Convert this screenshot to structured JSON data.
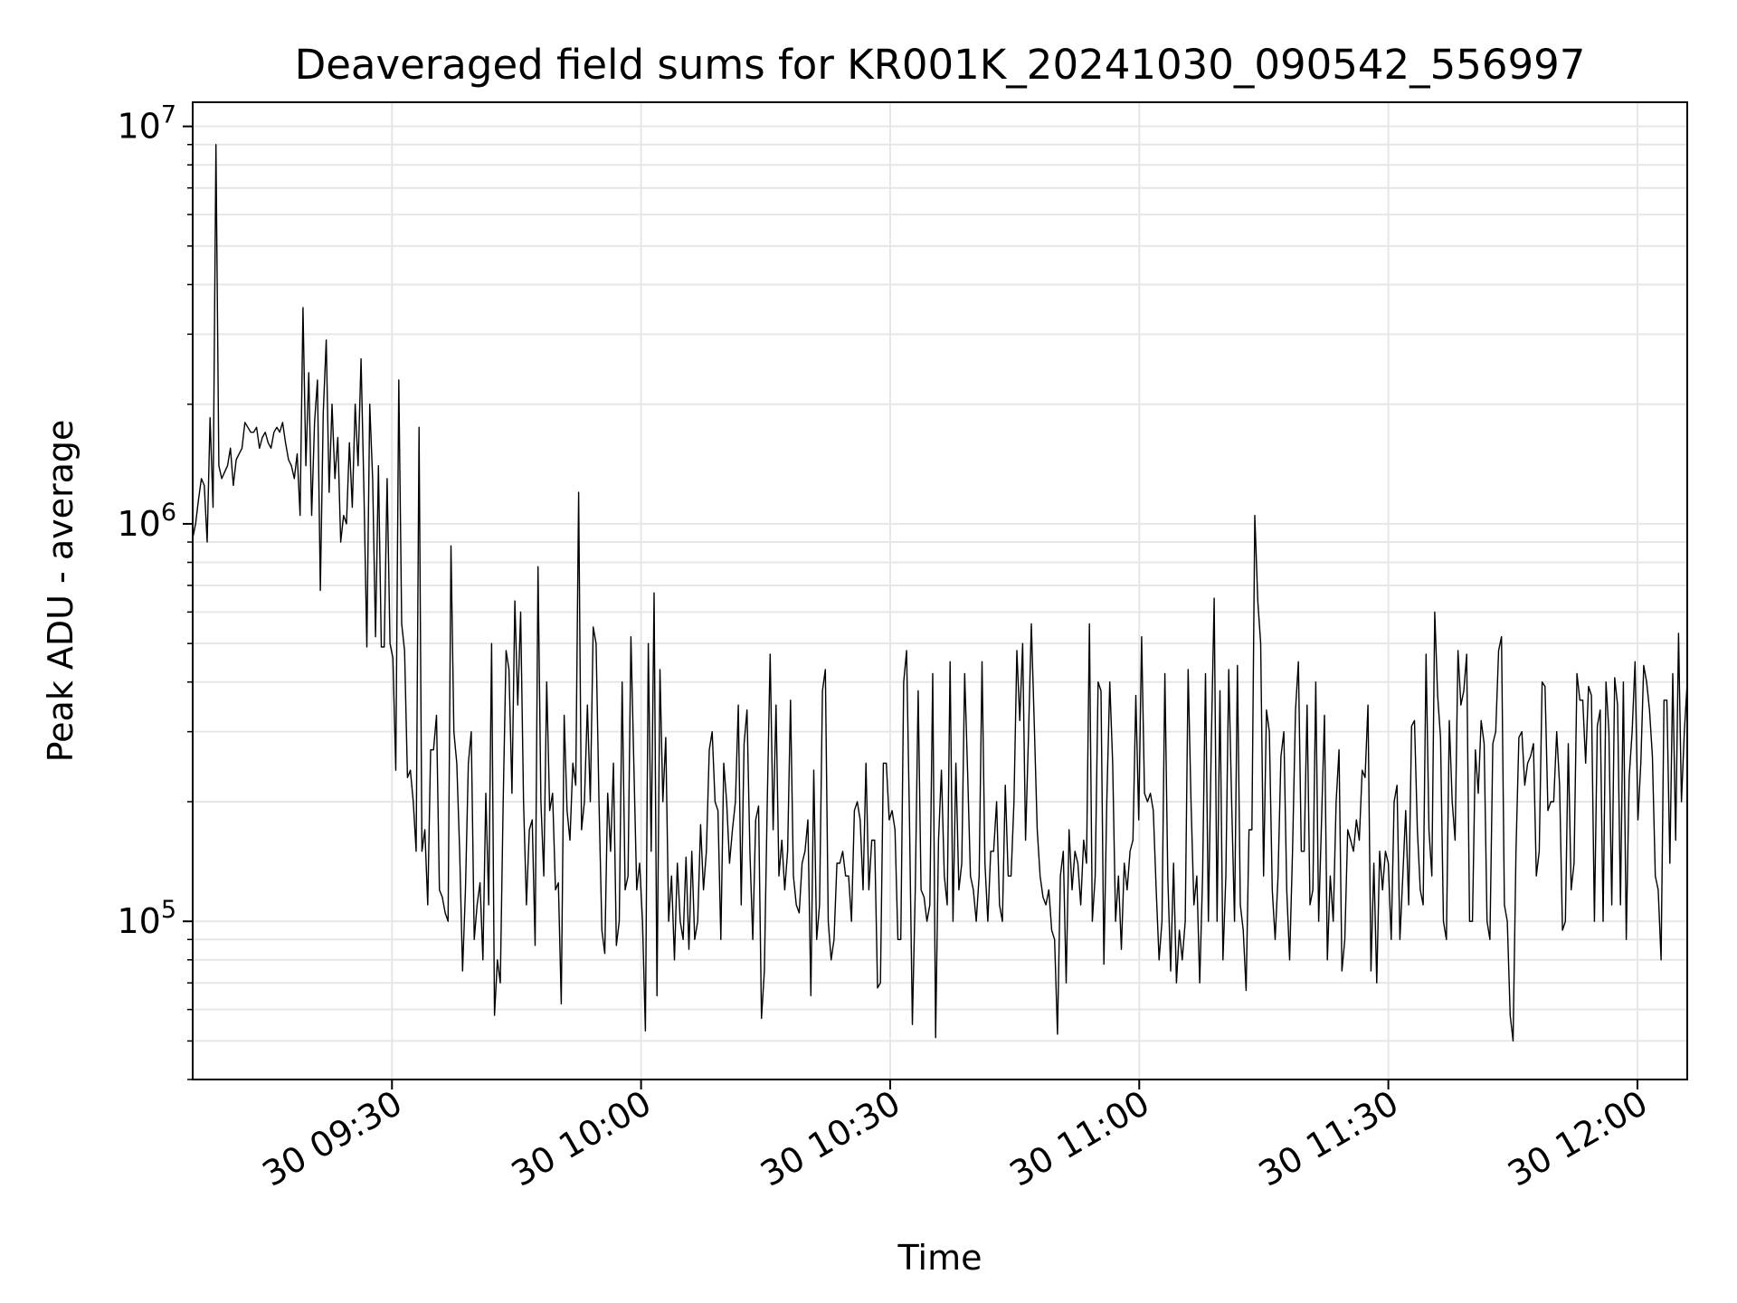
{
  "chart_data": {
    "type": "line",
    "title": "Deaveraged field sums for KR001K_20241030_090542_556997",
    "xlabel": "Time",
    "ylabel": "Peak ADU - average",
    "yscale": "log",
    "ylim": [
      40000,
      11500000
    ],
    "xlim": [
      "2024-10-30 09:06",
      "2024-10-30 12:06"
    ],
    "x_ticks": [
      {
        "t": "2024-10-30 09:30",
        "label": "30 09:30"
      },
      {
        "t": "2024-10-30 10:00",
        "label": "30 10:00"
      },
      {
        "t": "2024-10-30 10:30",
        "label": "30 10:30"
      },
      {
        "t": "2024-10-30 11:00",
        "label": "30 11:00"
      },
      {
        "t": "2024-10-30 11:30",
        "label": "30 11:30"
      },
      {
        "t": "2024-10-30 12:00",
        "label": "30 12:00"
      }
    ],
    "y_ticks": [
      {
        "value": 100000,
        "base": "10",
        "exp": "5"
      },
      {
        "value": 1000000,
        "base": "10",
        "exp": "6"
      },
      {
        "value": 10000000,
        "base": "10",
        "exp": "7"
      }
    ],
    "grid": true,
    "line_color": "#000000",
    "grid_color": "#e6e6e6",
    "series": [
      {
        "x_start": "2024-10-30 09:06",
        "x_end": "2024-10-30 12:06",
        "values": [
          920000,
          1000000,
          1150000,
          1300000,
          1250000,
          900000,
          1850000,
          1100000,
          9000000,
          1400000,
          1300000,
          1350000,
          1400000,
          1550000,
          1250000,
          1450000,
          1500000,
          1550000,
          1800000,
          1750000,
          1700000,
          1700000,
          1750000,
          1550000,
          1650000,
          1700000,
          1600000,
          1550000,
          1700000,
          1750000,
          1700000,
          1800000,
          1600000,
          1450000,
          1400000,
          1300000,
          1500000,
          1050000,
          3500000,
          1400000,
          2400000,
          1050000,
          1800000,
          2300000,
          680000,
          1900000,
          2900000,
          1200000,
          2000000,
          1300000,
          1650000,
          900000,
          1050000,
          1000000,
          1600000,
          1100000,
          2000000,
          1400000,
          2600000,
          1200000,
          490000,
          2000000,
          1300000,
          520000,
          1400000,
          490000,
          490000,
          1300000,
          500000,
          460000,
          240000,
          2300000,
          560000,
          480000,
          230000,
          240000,
          200000,
          150000,
          1750000,
          150000,
          170000,
          110000,
          270000,
          270000,
          330000,
          120000,
          115000,
          105000,
          100000,
          880000,
          300000,
          250000,
          150000,
          75000,
          120000,
          250000,
          300000,
          90000,
          110000,
          125000,
          80000,
          210000,
          110000,
          500000,
          58000,
          80000,
          70000,
          200000,
          480000,
          430000,
          210000,
          640000,
          350000,
          600000,
          200000,
          110000,
          170000,
          180000,
          87000,
          780000,
          200000,
          130000,
          400000,
          190000,
          210000,
          120000,
          125000,
          62000,
          330000,
          190000,
          160000,
          250000,
          220000,
          1200000,
          170000,
          200000,
          350000,
          200000,
          550000,
          500000,
          200000,
          95000,
          83000,
          210000,
          150000,
          250000,
          87000,
          100000,
          400000,
          120000,
          130000,
          520000,
          250000,
          120000,
          140000,
          100000,
          53000,
          500000,
          150000,
          670000,
          65000,
          430000,
          200000,
          290000,
          100000,
          130000,
          80000,
          140000,
          100000,
          90000,
          145000,
          85000,
          150000,
          90000,
          100000,
          175000,
          120000,
          150000,
          270000,
          300000,
          200000,
          190000,
          90000,
          250000,
          200000,
          140000,
          170000,
          200000,
          350000,
          110000,
          280000,
          340000,
          150000,
          90000,
          180000,
          195000,
          57000,
          75000,
          200000,
          470000,
          170000,
          350000,
          130000,
          160000,
          120000,
          150000,
          360000,
          130000,
          110000,
          105000,
          140000,
          150000,
          180000,
          65000,
          240000,
          90000,
          110000,
          380000,
          430000,
          100000,
          80000,
          90000,
          140000,
          140000,
          150000,
          130000,
          130000,
          100000,
          190000,
          200000,
          180000,
          120000,
          250000,
          120000,
          160000,
          160000,
          68000,
          70000,
          250000,
          250000,
          180000,
          190000,
          170000,
          90000,
          90000,
          400000,
          480000,
          180000,
          55000,
          120000,
          380000,
          120000,
          115000,
          100000,
          110000,
          420000,
          51000,
          160000,
          240000,
          130000,
          110000,
          450000,
          100000,
          250000,
          120000,
          140000,
          420000,
          240000,
          130000,
          120000,
          100000,
          130000,
          450000,
          140000,
          100000,
          150000,
          150000,
          200000,
          110000,
          100000,
          220000,
          130000,
          130000,
          200000,
          480000,
          320000,
          500000,
          160000,
          290000,
          560000,
          310000,
          170000,
          130000,
          115000,
          110000,
          120000,
          95000,
          90000,
          52000,
          130000,
          150000,
          70000,
          170000,
          120000,
          150000,
          140000,
          110000,
          160000,
          140000,
          560000,
          100000,
          130000,
          400000,
          380000,
          78000,
          200000,
          400000,
          250000,
          100000,
          130000,
          85000,
          140000,
          120000,
          150000,
          160000,
          370000,
          180000,
          520000,
          210000,
          200000,
          210000,
          190000,
          120000,
          80000,
          100000,
          420000,
          130000,
          75000,
          140000,
          70000,
          95000,
          80000,
          100000,
          430000,
          200000,
          110000,
          130000,
          70000,
          130000,
          420000,
          100000,
          280000,
          650000,
          100000,
          380000,
          80000,
          130000,
          430000,
          200000,
          100000,
          440000,
          110000,
          95000,
          67000,
          170000,
          170000,
          1050000,
          640000,
          500000,
          130000,
          340000,
          300000,
          120000,
          90000,
          130000,
          260000,
          300000,
          120000,
          80000,
          150000,
          340000,
          450000,
          150000,
          150000,
          350000,
          110000,
          120000,
          400000,
          100000,
          180000,
          330000,
          80000,
          130000,
          100000,
          200000,
          270000,
          75000,
          90000,
          170000,
          160000,
          150000,
          180000,
          160000,
          240000,
          230000,
          350000,
          75000,
          140000,
          70000,
          150000,
          120000,
          150000,
          140000,
          90000,
          200000,
          220000,
          90000,
          130000,
          190000,
          110000,
          310000,
          320000,
          170000,
          120000,
          110000,
          470000,
          170000,
          130000,
          600000,
          370000,
          290000,
          100000,
          90000,
          320000,
          200000,
          160000,
          480000,
          350000,
          380000,
          470000,
          100000,
          100000,
          270000,
          210000,
          320000,
          280000,
          100000,
          90000,
          280000,
          300000,
          480000,
          520000,
          110000,
          100000,
          58000,
          50000,
          150000,
          290000,
          300000,
          220000,
          250000,
          260000,
          280000,
          130000,
          150000,
          400000,
          390000,
          190000,
          200000,
          200000,
          300000,
          220000,
          95000,
          100000,
          280000,
          120000,
          140000,
          420000,
          360000,
          360000,
          250000,
          390000,
          370000,
          100000,
          310000,
          340000,
          100000,
          400000,
          300000,
          110000,
          410000,
          350000,
          110000,
          400000,
          90000,
          230000,
          300000,
          450000,
          180000,
          250000,
          440000,
          400000,
          340000,
          260000,
          130000,
          120000,
          80000,
          360000,
          360000,
          140000,
          420000,
          160000,
          530000,
          200000,
          300000,
          400000
        ]
      }
    ]
  }
}
